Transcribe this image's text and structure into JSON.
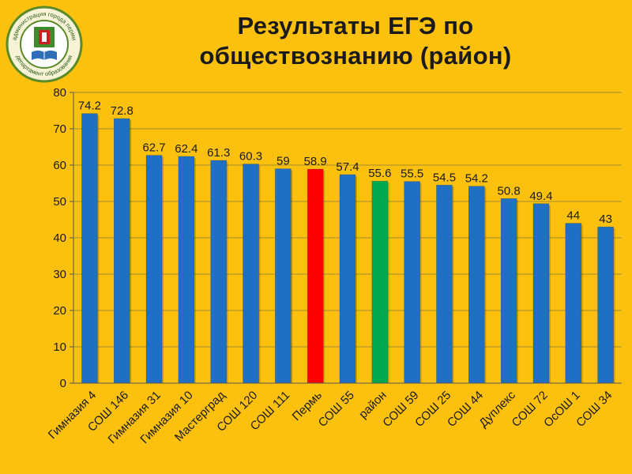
{
  "title_lines": [
    "Результаты ЕГЭ по",
    "обществознанию  (район)"
  ],
  "logo": {
    "top_text": "администрация города перми",
    "bottom_text": "департамент образования"
  },
  "chart_data": {
    "type": "bar",
    "title": "Результаты ЕГЭ по обществознанию  (район)",
    "categories": [
      "Гимназия 4",
      "СОШ 146",
      "Гимназия 31",
      "Гимназия 10",
      "Мастерград",
      "СОШ 120",
      "СОШ 111",
      "Пермь",
      "СОШ 55",
      "район",
      "СОШ 59",
      "СОШ 25",
      "СОШ 44",
      "Дуплекс",
      "СОШ 72",
      "ОсОШ 1",
      "СОШ 34"
    ],
    "values": [
      74.2,
      72.8,
      62.7,
      62.4,
      61.3,
      60.3,
      59,
      58.9,
      57.4,
      55.6,
      55.5,
      54.5,
      54.2,
      50.8,
      49.4,
      44,
      43
    ],
    "value_labels": [
      "74.2",
      "72.8",
      "62.7",
      "62.4",
      "61.3",
      "60.3",
      "59",
      "58.9",
      "57.4",
      "55.6",
      "55.5",
      "54.5",
      "54.2",
      "50.8",
      "49.4",
      "44",
      "43"
    ],
    "bar_colors": [
      "#1f6fc4",
      "#1f6fc4",
      "#1f6fc4",
      "#1f6fc4",
      "#1f6fc4",
      "#1f6fc4",
      "#1f6fc4",
      "#ff0000",
      "#1f6fc4",
      "#00a84f",
      "#1f6fc4",
      "#1f6fc4",
      "#1f6fc4",
      "#1f6fc4",
      "#1f6fc4",
      "#1f6fc4",
      "#1f6fc4"
    ],
    "yticks": [
      "0",
      "10",
      "20",
      "30",
      "40",
      "50",
      "60",
      "70",
      "80"
    ],
    "ylim": [
      0,
      80
    ],
    "xlabel": "",
    "ylabel": "",
    "grid": true,
    "legend": "none"
  },
  "colors": {
    "background": "#fcc10f",
    "bar_default": "#1f6fc4",
    "bar_highlight_city": "#ff0000",
    "bar_highlight_district": "#00a84f"
  }
}
